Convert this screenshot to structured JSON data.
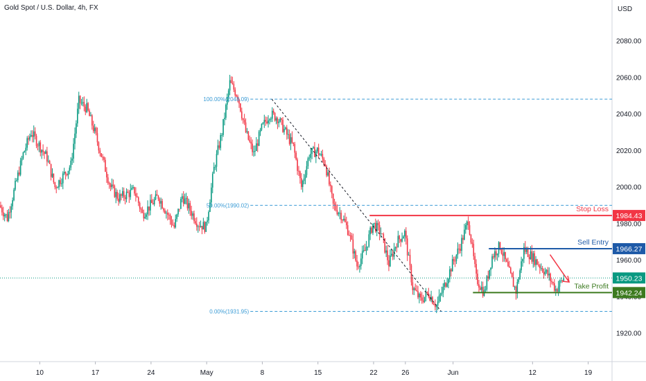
{
  "header": {
    "title": "Gold Spot / U.S. Dollar, 4h, FX"
  },
  "chart_data": {
    "type": "candlestick",
    "title": "Gold Spot / U.S. Dollar, 4h, FX",
    "currency_label": "USD",
    "ylim": [
      1900,
      2100
    ],
    "y_ticks": [
      1920,
      1940,
      1960,
      1980,
      2000,
      2020,
      2040,
      2060,
      2080
    ],
    "x_ticks": [
      {
        "label": "10",
        "day": 10
      },
      {
        "label": "17",
        "day": 17
      },
      {
        "label": "24",
        "day": 24
      },
      {
        "label": "May",
        "day": 31
      },
      {
        "label": "8",
        "day": 38
      },
      {
        "label": "15",
        "day": 45
      },
      {
        "label": "22",
        "day": 52
      },
      {
        "label": "26",
        "day": 56
      },
      {
        "label": "Jun",
        "day": 62
      },
      {
        "label": "12",
        "day": 72
      },
      {
        "label": "19",
        "day": 79
      }
    ],
    "xlim": [
      5,
      82
    ],
    "up_color": "#089981",
    "down_color": "#f23645",
    "fib_color": "#3a9bd5",
    "fibonacci": [
      {
        "label": "100.00%(2048.09)",
        "value": 2048.09
      },
      {
        "label": "50.00%(1990.02)",
        "value": 1990.02
      },
      {
        "label": "0.00%(1931.95)",
        "value": 1931.95
      }
    ],
    "levels": [
      {
        "name": "Stop Loss",
        "value": 1984.43,
        "display": "1984.43",
        "color": "#f23645",
        "start_day": 51.5
      },
      {
        "name": "Sell Entry",
        "value": 1966.27,
        "display": "1966.27",
        "color": "#1e5aa8",
        "start_day": 66.5
      },
      {
        "name": "Take Profit",
        "value": 1942.24,
        "display": "1942.24",
        "color": "#3c7a1f",
        "start_day": 64.5
      }
    ],
    "current_price": {
      "value": 1950.23,
      "display": "1950.23",
      "color": "#089981"
    },
    "anchors": [
      [
        5,
        1990
      ],
      [
        6,
        1983
      ],
      [
        8,
        2018
      ],
      [
        9,
        2030
      ],
      [
        11,
        2016
      ],
      [
        12,
        2000
      ],
      [
        14,
        2012
      ],
      [
        15,
        2047
      ],
      [
        16,
        2043
      ],
      [
        17,
        2030
      ],
      [
        19,
        2000
      ],
      [
        20,
        1994
      ],
      [
        22,
        1998
      ],
      [
        23,
        1985
      ],
      [
        25,
        1995
      ],
      [
        27,
        1978
      ],
      [
        28,
        1995
      ],
      [
        30,
        1980
      ],
      [
        31,
        1978
      ],
      [
        32,
        2010
      ],
      [
        33,
        2030
      ],
      [
        34,
        2057
      ],
      [
        35,
        2050
      ],
      [
        36,
        2030
      ],
      [
        37,
        2018
      ],
      [
        38,
        2032
      ],
      [
        39,
        2040
      ],
      [
        40,
        2038
      ],
      [
        42,
        2022
      ],
      [
        43,
        2000
      ],
      [
        44,
        2018
      ],
      [
        45,
        2020
      ],
      [
        46,
        2013
      ],
      [
        47,
        1990
      ],
      [
        48,
        1985
      ],
      [
        49,
        1975
      ],
      [
        50,
        1957
      ],
      [
        51,
        1965
      ],
      [
        52,
        1980
      ],
      [
        53,
        1975
      ],
      [
        54,
        1958
      ],
      [
        55,
        1970
      ],
      [
        56,
        1975
      ],
      [
        57,
        1945
      ],
      [
        58,
        1938
      ],
      [
        59,
        1942
      ],
      [
        60,
        1935
      ],
      [
        61,
        1946
      ],
      [
        62,
        1958
      ],
      [
        63,
        1968
      ],
      [
        64,
        1982
      ],
      [
        65,
        1950
      ],
      [
        66,
        1942
      ],
      [
        67,
        1962
      ],
      [
        68,
        1968
      ],
      [
        69,
        1955
      ],
      [
        70,
        1943
      ],
      [
        71,
        1966
      ],
      [
        72,
        1962
      ],
      [
        73,
        1957
      ],
      [
        74,
        1952
      ],
      [
        75,
        1944
      ],
      [
        76,
        1950
      ]
    ]
  }
}
